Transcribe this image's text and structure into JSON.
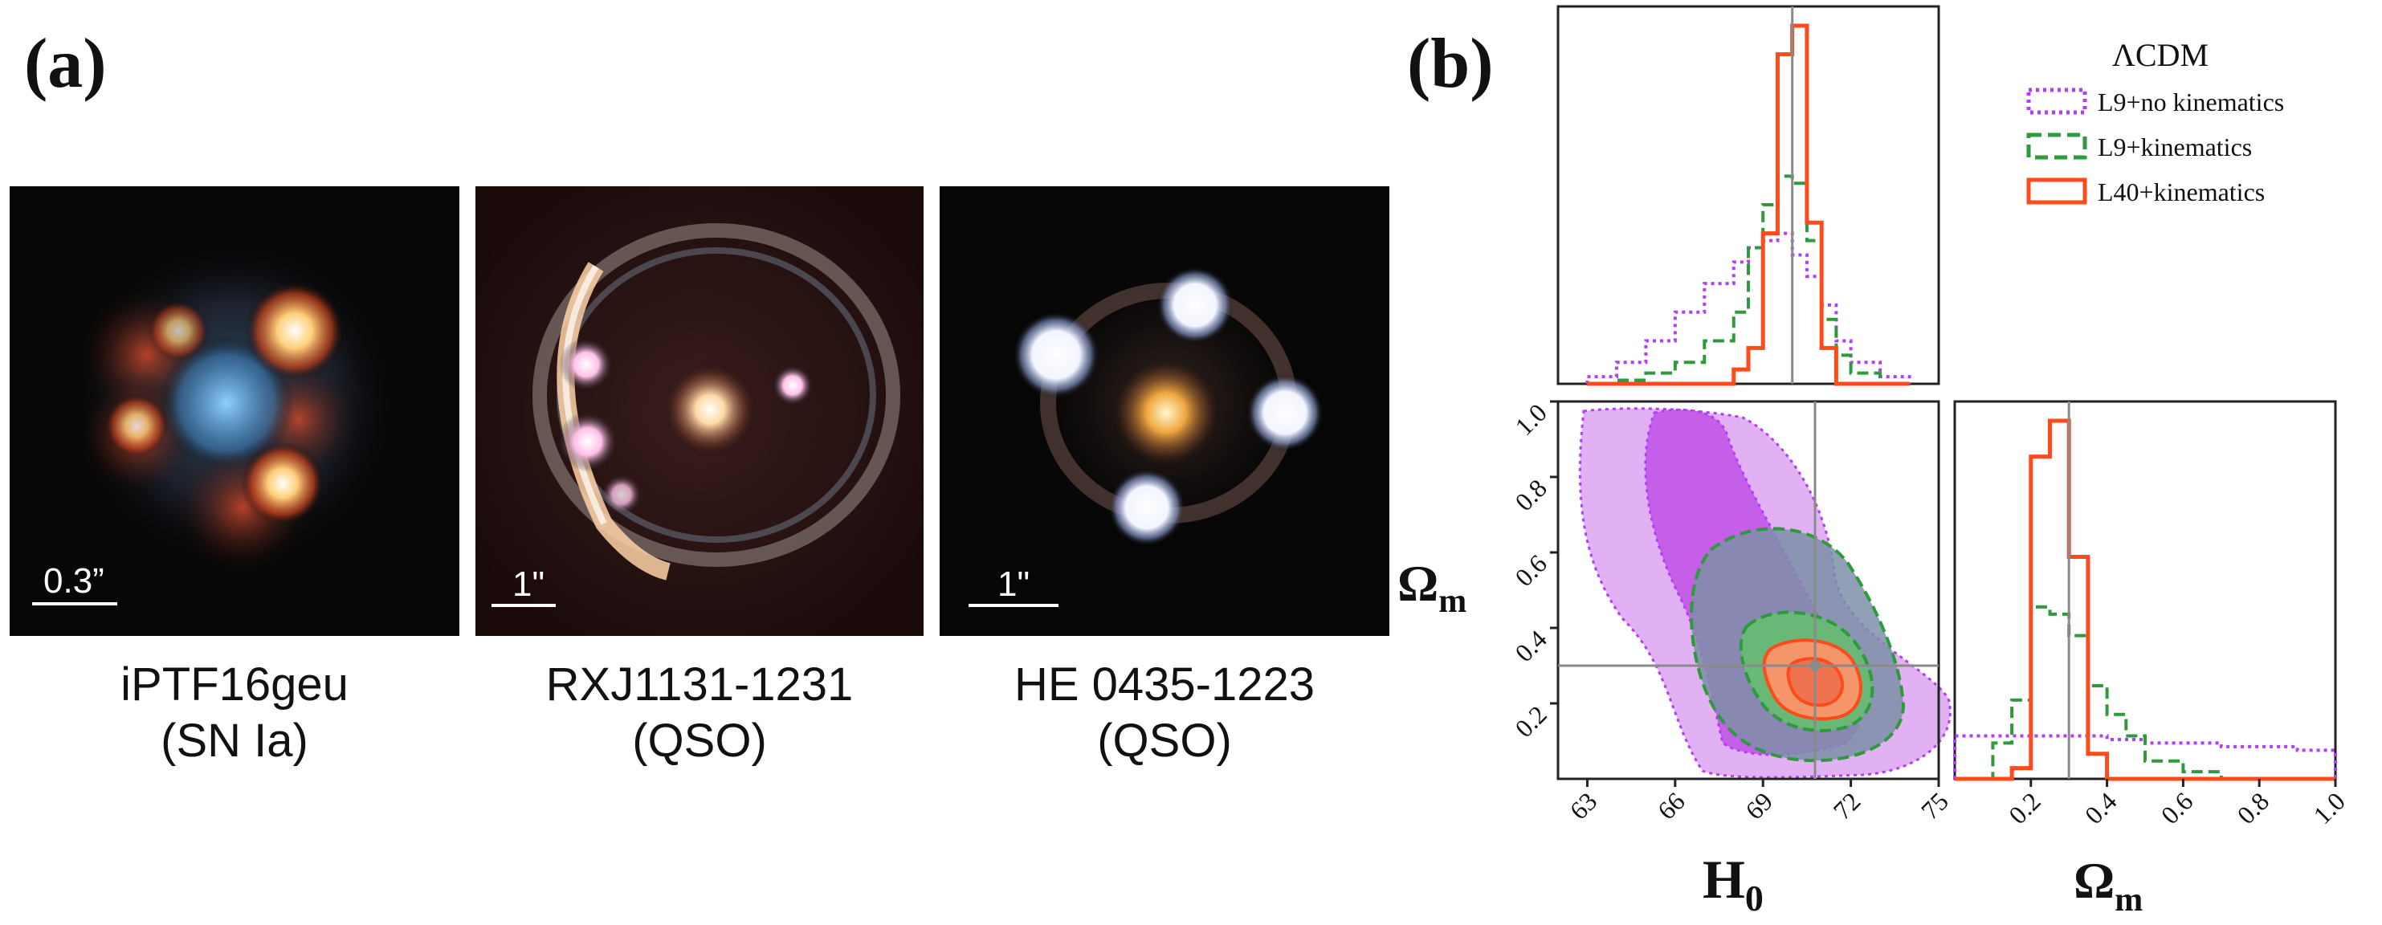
{
  "panel_a": {
    "label": "(a)",
    "images": [
      {
        "name": "iPTF16geu",
        "type": "(SN Ia)",
        "scale": "0.3”"
      },
      {
        "name": "RXJ1131-1231",
        "type": "(QSO)",
        "scale": "1\""
      },
      {
        "name": "HE 0435-1223",
        "type": "(QSO)",
        "scale": "1\""
      }
    ]
  },
  "panel_b": {
    "label": "(b)",
    "legend_title": "ΛCDM",
    "colors": {
      "purple": "#b23cff",
      "green": "#2e9a3c",
      "red": "#ff4a1c",
      "truth": "#8a8a8a"
    },
    "axes": {
      "h0_label": "H",
      "h0_sub": "0",
      "om_label": "Ω",
      "om_sub": "m"
    }
  },
  "chart_data": {
    "type": "corner",
    "legend": [
      "L9+no kinematics",
      "L9+kinematics",
      "L40+kinematics"
    ],
    "parameters": [
      "H0",
      "Omega_m"
    ],
    "truth": {
      "H0": 70,
      "Omega_m": 0.3
    },
    "H0_range": [
      62,
      75
    ],
    "Om_range": [
      0.0,
      1.0
    ],
    "H0_ticks": [
      "63",
      "66",
      "69",
      "72",
      "75"
    ],
    "Om_ticks_y": [
      "1.0",
      "0.8",
      "0.6",
      "0.4",
      "0.2"
    ],
    "Om_ticks_x": [
      "0.2",
      "0.4",
      "0.6",
      "0.8",
      "1.0"
    ],
    "H0_hist": {
      "bin_edges": [
        63,
        64,
        65,
        66,
        67,
        68,
        68.5,
        69,
        69.5,
        70,
        70.5,
        71,
        71.5,
        72,
        73,
        74
      ],
      "L9_no_kin": [
        0.02,
        0.06,
        0.12,
        0.2,
        0.28,
        0.34,
        0.38,
        0.4,
        0.42,
        0.36,
        0.3,
        0.22,
        0.12,
        0.06,
        0.02
      ],
      "L9_kin": [
        0.0,
        0.01,
        0.03,
        0.06,
        0.12,
        0.2,
        0.38,
        0.5,
        0.58,
        0.56,
        0.4,
        0.18,
        0.08,
        0.03,
        0.0
      ],
      "L40_kin": [
        0.0,
        0.0,
        0.0,
        0.0,
        0.0,
        0.04,
        0.1,
        0.42,
        0.92,
        1.0,
        0.45,
        0.1,
        0.0,
        0.0,
        0.0
      ]
    },
    "Om_hist": {
      "bin_edges": [
        0.0,
        0.1,
        0.15,
        0.2,
        0.25,
        0.3,
        0.35,
        0.4,
        0.45,
        0.5,
        0.6,
        0.7,
        0.8,
        0.9,
        1.0
      ],
      "L9_no_kin": [
        0.12,
        0.12,
        0.12,
        0.12,
        0.12,
        0.12,
        0.12,
        0.11,
        0.11,
        0.1,
        0.1,
        0.09,
        0.09,
        0.08
      ],
      "L9_kin": [
        0.0,
        0.1,
        0.22,
        0.48,
        0.46,
        0.4,
        0.26,
        0.18,
        0.12,
        0.05,
        0.02,
        0.0,
        0.0,
        0.0
      ],
      "L40_kin": [
        0.0,
        0.0,
        0.03,
        0.9,
        1.0,
        0.62,
        0.07,
        0.0,
        0.0,
        0.0,
        0.0,
        0.0,
        0.0,
        0.0
      ]
    },
    "contours_2d": "L9+no kinematics broad anti-correlated band; L9+kinematics narrower ellipse; L40+kinematics small ellipse centered near (70, 0.3)"
  }
}
